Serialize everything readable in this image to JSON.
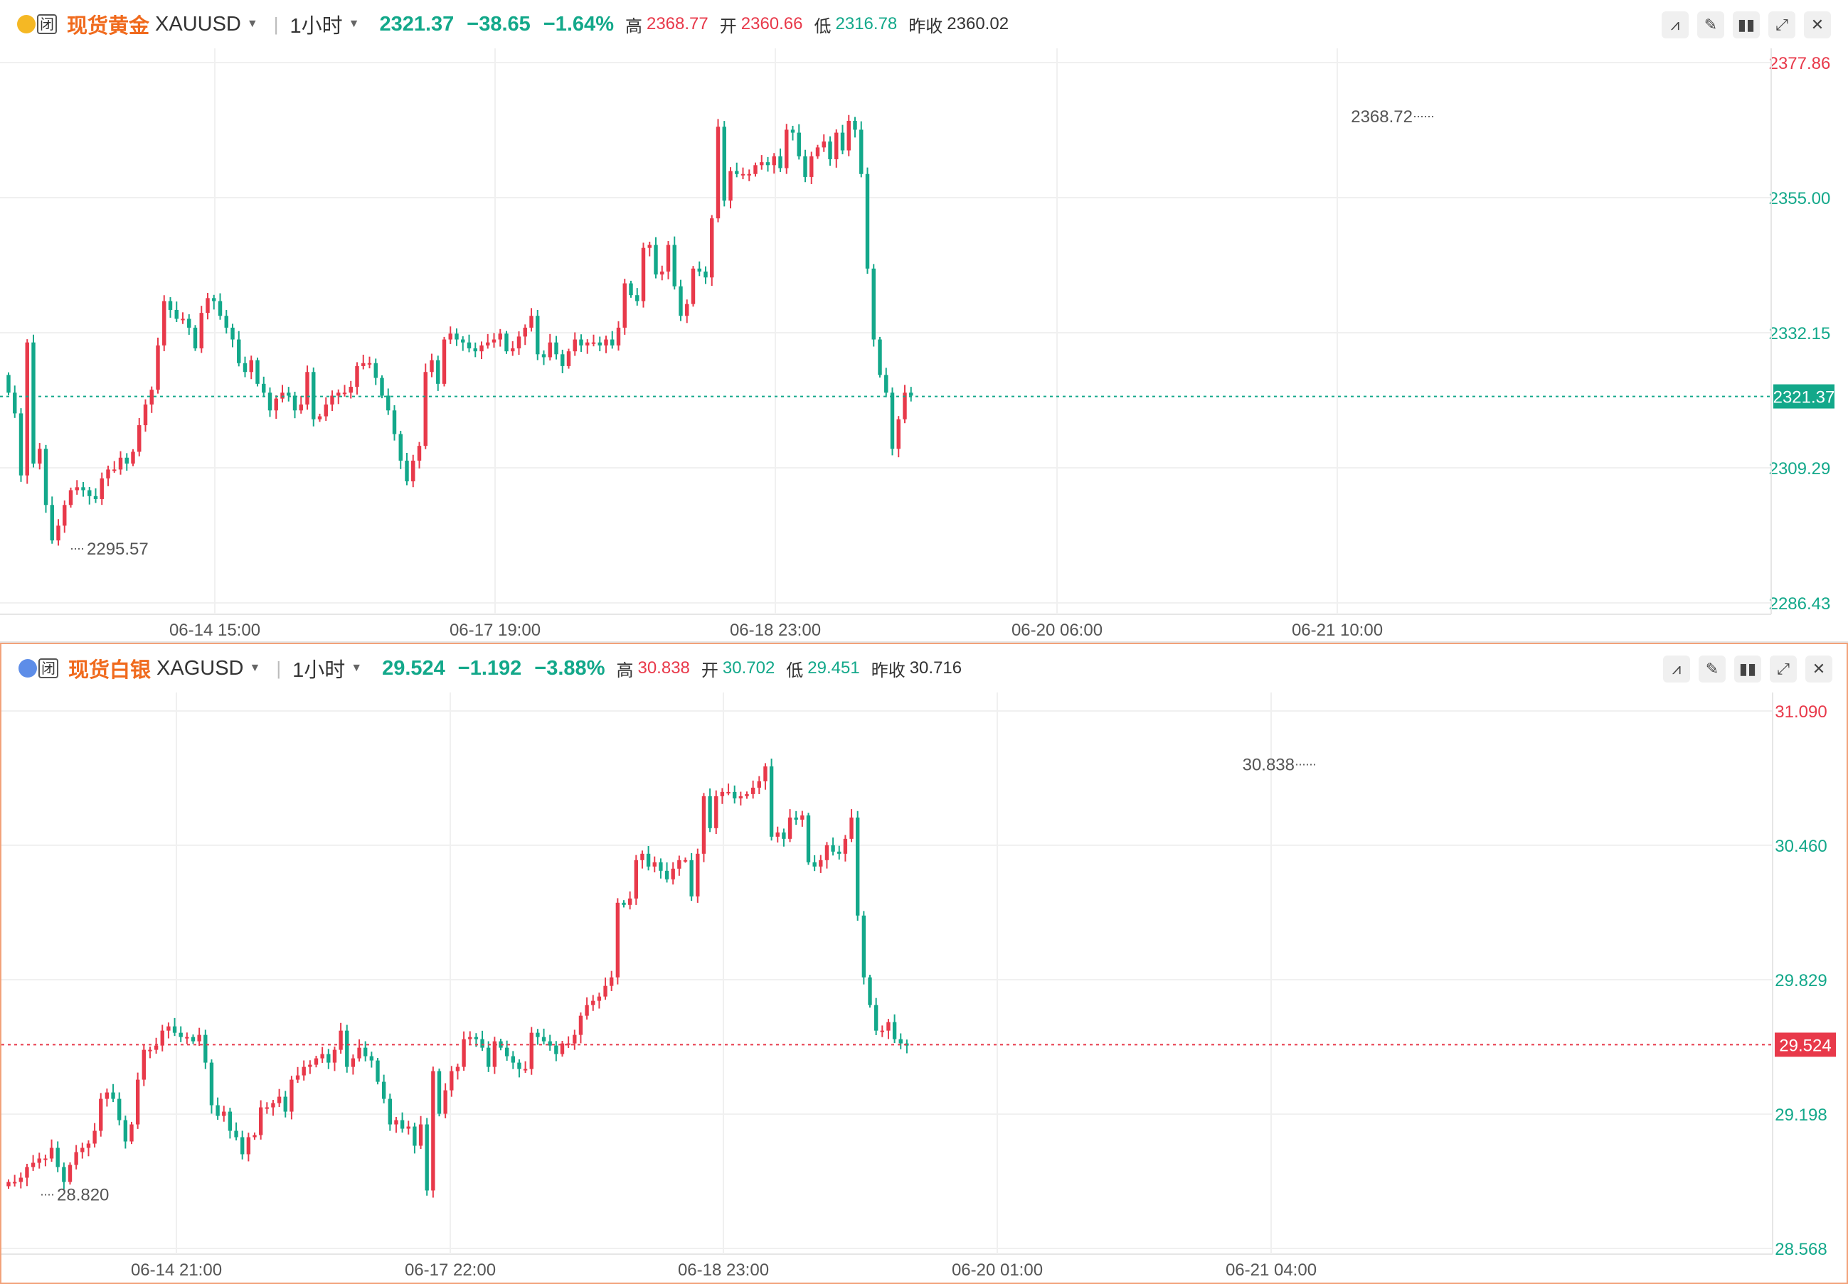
{
  "colors": {
    "up": "#e8394a",
    "down": "#13a88a",
    "accent": "#f06a1d",
    "grid": "#f0f0f0"
  },
  "panels": [
    {
      "id": "gold",
      "icon": "gold-coin-icon",
      "closed_badge": "闭",
      "name": "现货黄金",
      "code": "XAUUSD",
      "interval": "1小时",
      "price": "2321.37",
      "change": "−38.65",
      "change_pct": "−1.64%",
      "high_label": "高",
      "high": "2368.77",
      "open_label": "开",
      "open": "2360.66",
      "low_label": "低",
      "low": "2316.78",
      "prev_label": "昨收",
      "prev_close": "2360.02",
      "y_ticks": [
        "2377.86",
        "2355.00",
        "2332.15",
        "2309.29",
        "2286.43"
      ],
      "x_ticks": [
        "06-14 15:00",
        "06-17 19:00",
        "06-18 23:00",
        "06-20 06:00",
        "06-21 10:00"
      ],
      "max_marker": "2368.72",
      "min_marker": "2295.57",
      "last_label": "2321.37"
    },
    {
      "id": "silver",
      "icon": "silver-coin-icon",
      "closed_badge": "闭",
      "name": "现货白银",
      "code": "XAGUSD",
      "interval": "1小时",
      "price": "29.524",
      "change": "−1.192",
      "change_pct": "−3.88%",
      "high_label": "高",
      "high": "30.838",
      "open_label": "开",
      "open": "30.702",
      "low_label": "低",
      "low": "29.451",
      "prev_label": "昨收",
      "prev_close": "30.716",
      "y_ticks": [
        "31.090",
        "30.460",
        "29.829",
        "29.198",
        "28.568"
      ],
      "x_ticks": [
        "06-14 21:00",
        "06-17 22:00",
        "06-18 23:00",
        "06-20 01:00",
        "06-21 04:00"
      ],
      "max_marker": "30.838",
      "min_marker": "28.820",
      "last_label": "29.524"
    }
  ],
  "chart_data": [
    {
      "type": "candlestick",
      "title": "现货黄金 XAUUSD 1小时",
      "ylim": [
        2286.43,
        2377.86
      ],
      "y_ticks": [
        2377.86,
        2355.0,
        2332.15,
        2309.29,
        2286.43
      ],
      "x_ticks": [
        "06-14 15:00",
        "06-17 19:00",
        "06-18 23:00",
        "06-20 06:00",
        "06-21 10:00"
      ],
      "closes": [
        2322.0,
        2318.5,
        2308.0,
        2330.5,
        2310.0,
        2312.5,
        2303.0,
        2297.0,
        2299.5,
        2303.0,
        2305.5,
        2306.0,
        2305.5,
        2304.5,
        2304.0,
        2307.5,
        2309.0,
        2309.0,
        2311.0,
        2310.0,
        2312.0,
        2316.5,
        2320.0,
        2322.5,
        2330.0,
        2337.5,
        2336.0,
        2334.5,
        2334.5,
        2333.0,
        2329.5,
        2335.5,
        2338.0,
        2337.5,
        2335.0,
        2333.0,
        2331.0,
        2327.0,
        2325.5,
        2327.5,
        2323.5,
        2322.0,
        2319.0,
        2321.0,
        2322.0,
        2321.5,
        2319.0,
        2320.0,
        2325.5,
        2317.5,
        2318.0,
        2320.0,
        2321.5,
        2322.0,
        2322.0,
        2323.0,
        2326.5,
        2327.0,
        2327.0,
        2324.5,
        2321.5,
        2319.0,
        2315.0,
        2310.5,
        2307.0,
        2310.5,
        2313.0,
        2325.5,
        2327.5,
        2323.5,
        2331.0,
        2332.0,
        2331.0,
        2330.5,
        2329.5,
        2329.0,
        2330.0,
        2330.5,
        2331.0,
        2332.0,
        2329.0,
        2329.5,
        2331.5,
        2333.0,
        2335.0,
        2328.5,
        2328.0,
        2330.5,
        2328.5,
        2326.5,
        2329.0,
        2331.0,
        2330.0,
        2330.5,
        2330.5,
        2330.0,
        2331.0,
        2330.0,
        2333.0,
        2340.5,
        2338.5,
        2337.5,
        2346.5,
        2347.0,
        2342.0,
        2342.5,
        2347.0,
        2340.0,
        2335.0,
        2337.0,
        2343.0,
        2342.5,
        2341.5,
        2351.5,
        2367.0,
        2354.5,
        2359.5,
        2359.0,
        2359.0,
        2359.0,
        2360.5,
        2361.0,
        2360.5,
        2362.0,
        2360.0,
        2366.5,
        2366.0,
        2362.0,
        2358.5,
        2362.0,
        2363.5,
        2364.5,
        2361.5,
        2366.0,
        2363.0,
        2368.0,
        2366.5,
        2359.0,
        2343.0,
        2331.0,
        2325.0,
        2322.0,
        2312.5,
        2317.5,
        2322.0,
        2321.5
      ],
      "open": 2360.66,
      "high": 2368.77,
      "low": 2316.78,
      "last": 2321.37,
      "prev_close": 2360.02
    },
    {
      "type": "candlestick",
      "title": "现货白银 XAGUSD 1小时",
      "ylim": [
        28.568,
        31.09
      ],
      "y_ticks": [
        31.09,
        30.46,
        29.829,
        29.198,
        28.568
      ],
      "x_ticks": [
        "06-14 21:00",
        "06-17 22:00",
        "06-18 23:00",
        "06-20 01:00",
        "06-21 04:00"
      ],
      "closes": [
        28.88,
        28.88,
        28.9,
        28.95,
        28.97,
        28.99,
        28.99,
        29.04,
        28.95,
        28.88,
        28.96,
        29.02,
        29.04,
        29.06,
        29.12,
        29.27,
        29.3,
        29.27,
        29.17,
        29.07,
        29.15,
        29.36,
        29.5,
        29.5,
        29.52,
        29.59,
        29.61,
        29.58,
        29.56,
        29.56,
        29.54,
        29.57,
        29.44,
        29.24,
        29.19,
        29.21,
        29.12,
        29.09,
        29.01,
        29.09,
        29.1,
        29.23,
        29.23,
        29.25,
        29.28,
        29.21,
        29.36,
        29.38,
        29.42,
        29.43,
        29.46,
        29.48,
        29.44,
        29.5,
        29.59,
        29.42,
        29.46,
        29.51,
        29.47,
        29.45,
        29.35,
        29.27,
        29.15,
        29.17,
        29.13,
        29.14,
        29.05,
        29.15,
        28.84,
        29.4,
        29.2,
        29.31,
        29.4,
        29.42,
        29.55,
        29.56,
        29.55,
        29.51,
        29.42,
        29.54,
        29.51,
        29.47,
        29.44,
        29.41,
        29.41,
        29.58,
        29.56,
        29.54,
        29.52,
        29.48,
        29.53,
        29.53,
        29.57,
        29.66,
        29.71,
        29.73,
        29.75,
        29.8,
        29.84,
        30.19,
        30.18,
        30.21,
        30.39,
        30.42,
        30.36,
        30.38,
        30.34,
        30.3,
        30.35,
        30.39,
        30.39,
        30.22,
        30.42,
        30.69,
        30.54,
        30.69,
        30.71,
        30.71,
        30.68,
        30.69,
        30.7,
        30.73,
        30.76,
        30.83,
        30.5,
        30.52,
        30.49,
        30.59,
        30.58,
        30.6,
        30.38,
        30.36,
        30.39,
        30.46,
        30.43,
        30.42,
        30.49,
        30.59,
        30.13,
        29.84,
        29.71,
        29.59,
        29.59,
        29.63,
        29.55,
        29.53,
        29.52
      ]
    }
  ]
}
